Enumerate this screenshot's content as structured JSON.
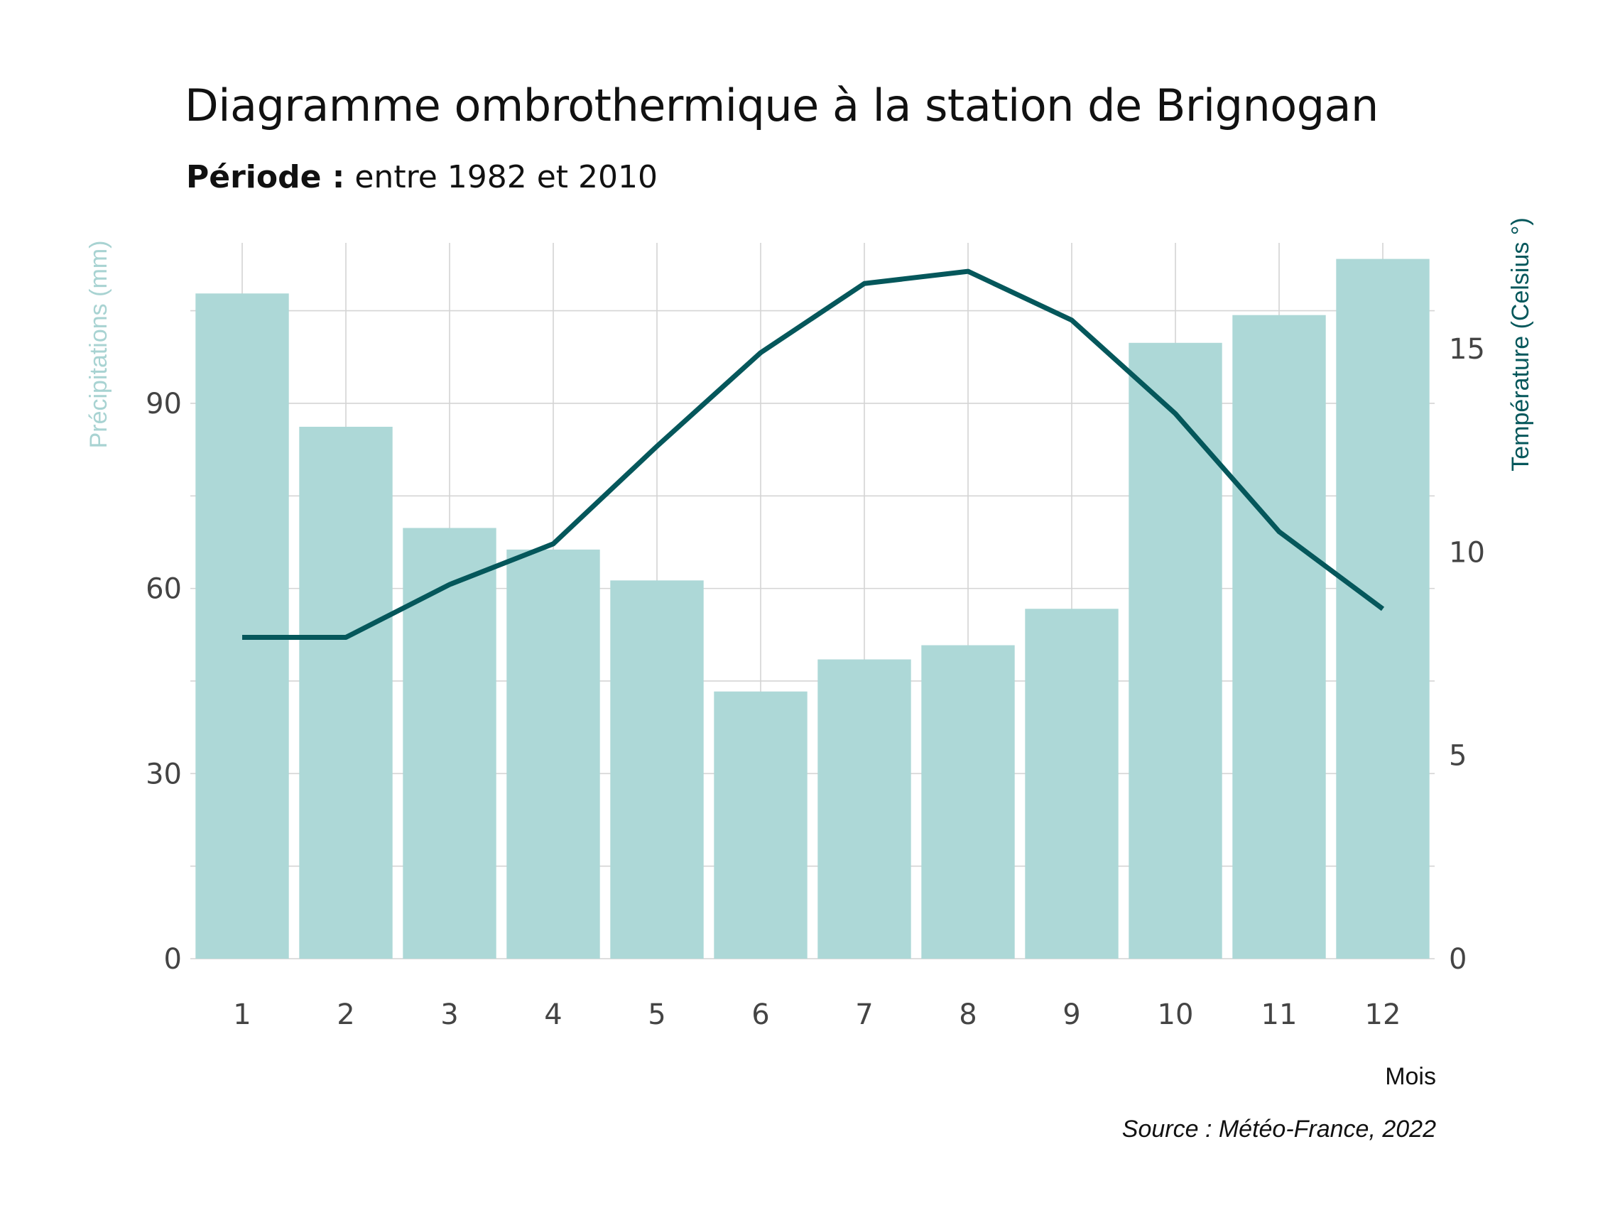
{
  "chart_data": {
    "type": "bar",
    "title": "Diagramme ombrothermique à la station de Brignogan",
    "subtitle_label": "Période :",
    "subtitle_text": "entre 1982 et 2010",
    "xlabel": "Mois",
    "ylabel_left": "Précipitations (mm)",
    "ylabel_right": "Température (Celsius °)",
    "caption": "Source : Météo-France, 2022",
    "categories": [
      "1",
      "2",
      "3",
      "4",
      "5",
      "6",
      "7",
      "8",
      "9",
      "10",
      "11",
      "12"
    ],
    "series": [
      {
        "kind": "bar",
        "axis": "left",
        "color": "#add8d7",
        "values": [
          107.8,
          86.2,
          69.8,
          66.3,
          61.3,
          43.3,
          48.5,
          50.8,
          56.7,
          99.8,
          104.3,
          113.4
        ]
      },
      {
        "kind": "line",
        "axis": "right",
        "color": "#05575b",
        "values": [
          7.9,
          7.9,
          9.2,
          10.2,
          12.6,
          14.9,
          16.6,
          16.9,
          15.7,
          13.4,
          10.5,
          8.6
        ]
      }
    ],
    "ylim_left": [
      0,
      116
    ],
    "yticks_left": [
      0,
      30,
      60,
      90
    ],
    "ylim_right": [
      0,
      17.6
    ],
    "yticks_right": [
      0,
      5,
      10,
      15
    ],
    "grid": true,
    "legend": "none"
  }
}
